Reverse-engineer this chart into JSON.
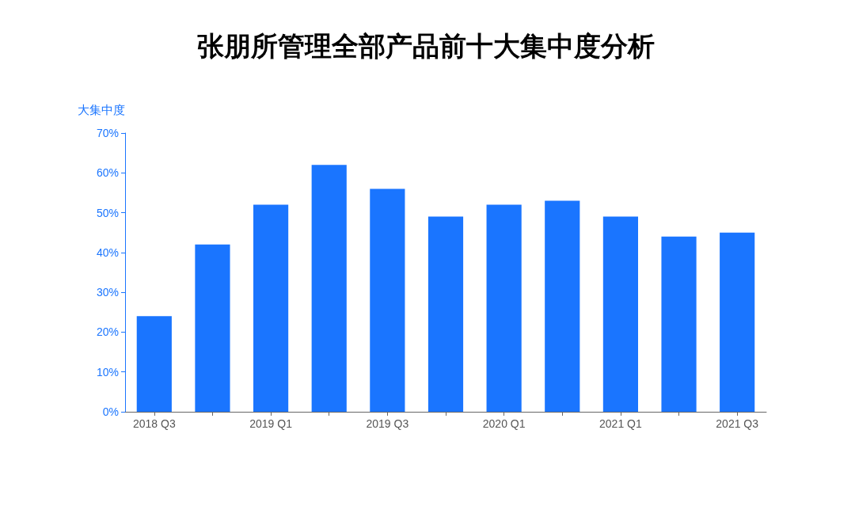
{
  "chart_data": {
    "type": "bar",
    "title": "张朋所管理全部产品前十大集中度分析",
    "ylabel": "大集中度",
    "categories": [
      "2018 Q3",
      null,
      "2019 Q1",
      null,
      "2019 Q3",
      null,
      "2020 Q1",
      null,
      "2021 Q1",
      null,
      "2021 Q3"
    ],
    "values": [
      24,
      42,
      52,
      62,
      56,
      49,
      52,
      53,
      49,
      44,
      45
    ],
    "color": "#1a75ff",
    "ylim": [
      0,
      70
    ],
    "yticks": [
      {
        "value": 0,
        "label": "0%"
      },
      {
        "value": 10,
        "label": "10%"
      },
      {
        "value": 20,
        "label": "20%"
      },
      {
        "value": 30,
        "label": "30%"
      },
      {
        "value": 40,
        "label": "40%"
      },
      {
        "value": 50,
        "label": "50%"
      },
      {
        "value": 60,
        "label": "60%"
      },
      {
        "value": 70,
        "label": "70%"
      }
    ],
    "grid": false
  }
}
